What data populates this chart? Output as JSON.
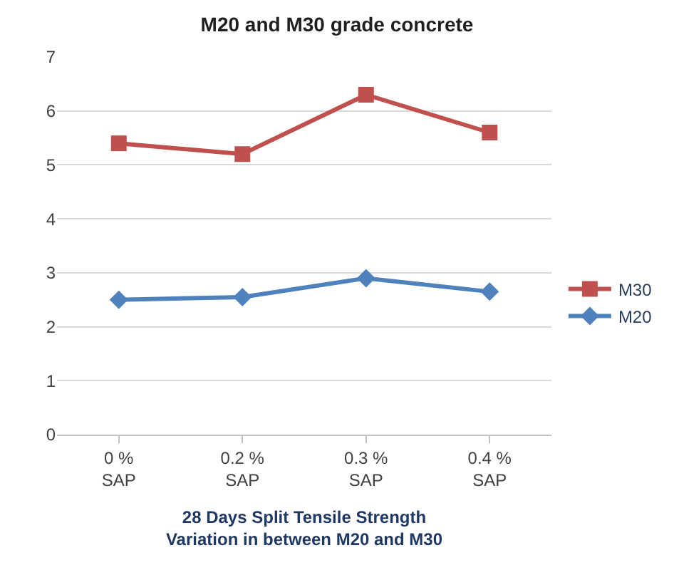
{
  "chart_data": {
    "type": "line",
    "title": "M20 and M30 grade concrete",
    "xlabel": "28 Days Split Tensile Strength\nVariation in between M20 and M30",
    "categories": [
      "0 %\nSAP",
      "0.2 %\nSAP",
      "0.3 %\nSAP",
      "0.4 %\nSAP"
    ],
    "series": [
      {
        "name": "M30",
        "color": "#c0504d",
        "marker": "square",
        "values": [
          5.4,
          5.2,
          6.3,
          5.6
        ]
      },
      {
        "name": "M20",
        "color": "#4f81bd",
        "marker": "diamond",
        "values": [
          2.5,
          2.55,
          2.9,
          2.65
        ]
      }
    ],
    "ylim": [
      0,
      7
    ],
    "yticks": [
      0,
      1,
      2,
      3,
      4,
      5,
      6,
      7
    ],
    "grid": "y",
    "legend": "right",
    "line_style": "solid"
  }
}
